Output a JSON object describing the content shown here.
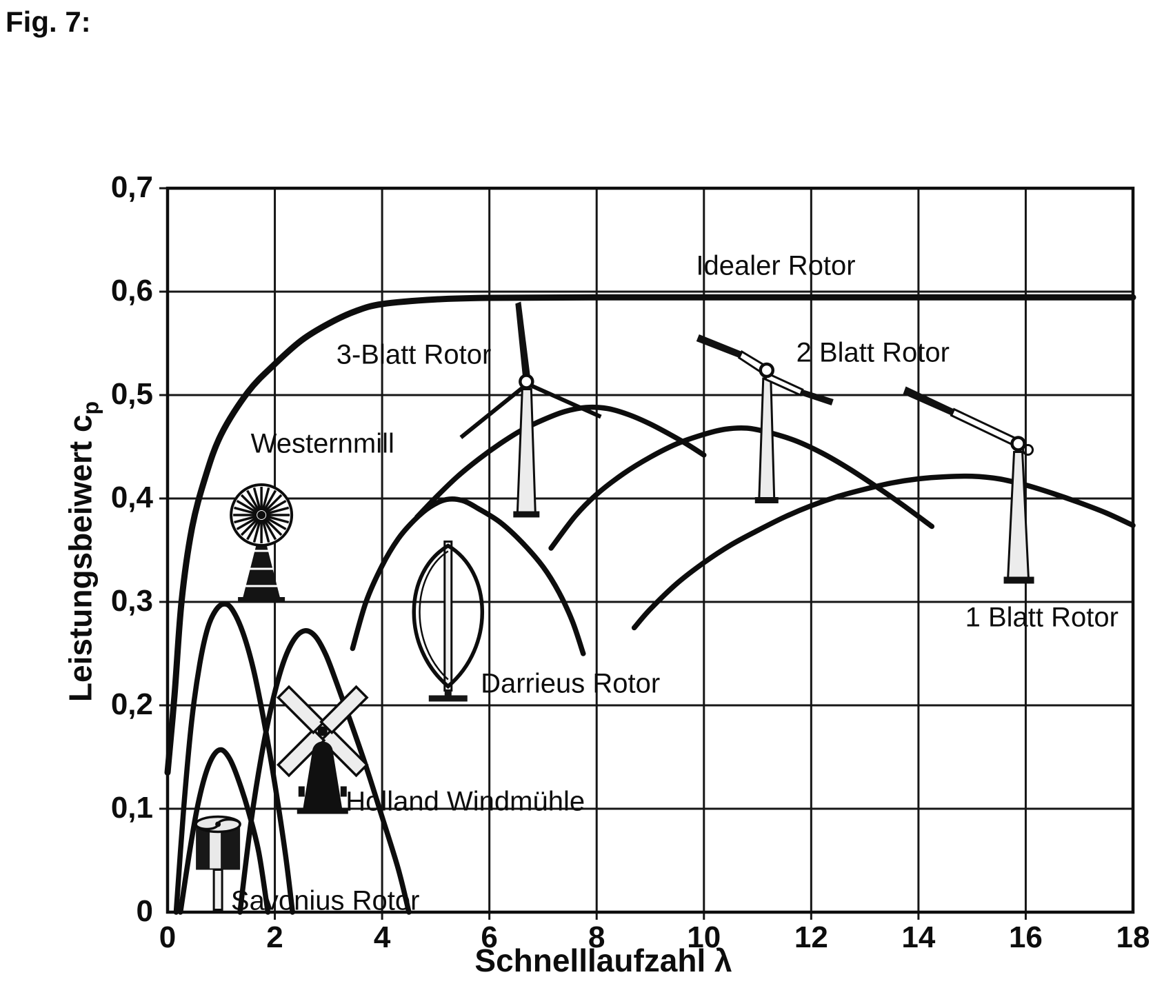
{
  "figure": {
    "label": "Fig. 7:"
  },
  "chart_data": {
    "type": "line",
    "title": "",
    "xlabel": "Schnelllaufzahl λ",
    "ylabel": "Leistungsbeiwert cp",
    "ylabel_main": "Leistungsbeiwert c",
    "ylabel_sub": "p",
    "xlim": [
      0,
      18
    ],
    "ylim": [
      0,
      0.7
    ],
    "x_ticks": [
      "0",
      "2",
      "4",
      "6",
      "8",
      "10",
      "12",
      "14",
      "16",
      "18"
    ],
    "y_ticks": [
      "0",
      "0,1",
      "0,2",
      "0,3",
      "0,4",
      "0,5",
      "0,6",
      "0,7"
    ],
    "grid": true,
    "legend_position": "labels-on-curves",
    "series": [
      {
        "name": "Idealer Rotor",
        "stroke_width": 9,
        "points": [
          [
            0,
            0.135
          ],
          [
            0.13,
            0.21
          ],
          [
            0.26,
            0.3
          ],
          [
            0.45,
            0.37
          ],
          [
            0.7,
            0.42
          ],
          [
            1,
            0.462
          ],
          [
            1.5,
            0.503
          ],
          [
            2,
            0.53
          ],
          [
            2.5,
            0.553
          ],
          [
            3,
            0.569
          ],
          [
            3.5,
            0.581
          ],
          [
            4,
            0.588
          ],
          [
            5,
            0.5925
          ],
          [
            6,
            0.594
          ],
          [
            8,
            0.5945
          ],
          [
            12,
            0.5945
          ],
          [
            18,
            0.5945
          ]
        ]
      },
      {
        "name": "Savonius Rotor",
        "stroke_width": 7.5,
        "points": [
          [
            0.24,
            0.0
          ],
          [
            0.4,
            0.055
          ],
          [
            0.55,
            0.1
          ],
          [
            0.7,
            0.132
          ],
          [
            0.85,
            0.151
          ],
          [
            1.0,
            0.157
          ],
          [
            1.15,
            0.149
          ],
          [
            1.3,
            0.131
          ],
          [
            1.5,
            0.099
          ],
          [
            1.7,
            0.058
          ],
          [
            1.87,
            0.0
          ]
        ]
      },
      {
        "name": "Westernmill",
        "stroke_width": 7.5,
        "points": [
          [
            0.16,
            0.0
          ],
          [
            0.3,
            0.1
          ],
          [
            0.45,
            0.185
          ],
          [
            0.6,
            0.24
          ],
          [
            0.75,
            0.275
          ],
          [
            0.9,
            0.292
          ],
          [
            1.05,
            0.298
          ],
          [
            1.2,
            0.293
          ],
          [
            1.4,
            0.271
          ],
          [
            1.6,
            0.235
          ],
          [
            1.8,
            0.184
          ],
          [
            2.0,
            0.124
          ],
          [
            2.2,
            0.055
          ],
          [
            2.33,
            0.0
          ]
        ]
      },
      {
        "name": "Holland Windmühle",
        "stroke_width": 7.5,
        "points": [
          [
            1.35,
            0.0
          ],
          [
            1.55,
            0.085
          ],
          [
            1.75,
            0.151
          ],
          [
            1.95,
            0.202
          ],
          [
            2.15,
            0.24
          ],
          [
            2.35,
            0.263
          ],
          [
            2.55,
            0.272
          ],
          [
            2.75,
            0.267
          ],
          [
            2.95,
            0.249
          ],
          [
            3.15,
            0.222
          ],
          [
            3.4,
            0.186
          ],
          [
            3.7,
            0.141
          ],
          [
            4.0,
            0.092
          ],
          [
            4.3,
            0.042
          ],
          [
            4.5,
            0.0
          ]
        ]
      },
      {
        "name": "Darrieus Rotor",
        "stroke_width": 7.5,
        "points": [
          [
            3.45,
            0.255
          ],
          [
            3.7,
            0.3
          ],
          [
            4.0,
            0.335
          ],
          [
            4.3,
            0.361
          ],
          [
            4.6,
            0.379
          ],
          [
            4.9,
            0.392
          ],
          [
            5.2,
            0.399
          ],
          [
            5.5,
            0.398
          ],
          [
            5.8,
            0.39
          ],
          [
            6.2,
            0.377
          ],
          [
            6.6,
            0.358
          ],
          [
            7.0,
            0.334
          ],
          [
            7.3,
            0.309
          ],
          [
            7.55,
            0.281
          ],
          [
            7.75,
            0.25
          ]
        ]
      },
      {
        "name": "3-Blatt Rotor",
        "stroke_width": 7.5,
        "points": [
          [
            4.65,
            0.382
          ],
          [
            5.0,
            0.401
          ],
          [
            5.4,
            0.421
          ],
          [
            5.8,
            0.438
          ],
          [
            6.2,
            0.453
          ],
          [
            6.6,
            0.466
          ],
          [
            7.0,
            0.476
          ],
          [
            7.4,
            0.484
          ],
          [
            7.8,
            0.488
          ],
          [
            8.2,
            0.487
          ],
          [
            8.6,
            0.481
          ],
          [
            9.0,
            0.472
          ],
          [
            9.4,
            0.461
          ],
          [
            9.7,
            0.452
          ],
          [
            10.0,
            0.442
          ]
        ]
      },
      {
        "name": "2 Blatt Rotor",
        "stroke_width": 7.5,
        "points": [
          [
            7.15,
            0.352
          ],
          [
            7.6,
            0.383
          ],
          [
            8.0,
            0.404
          ],
          [
            8.5,
            0.424
          ],
          [
            9.0,
            0.44
          ],
          [
            9.5,
            0.453
          ],
          [
            10.0,
            0.462
          ],
          [
            10.4,
            0.467
          ],
          [
            10.8,
            0.468
          ],
          [
            11.2,
            0.464
          ],
          [
            11.7,
            0.456
          ],
          [
            12.2,
            0.444
          ],
          [
            12.7,
            0.429
          ],
          [
            13.2,
            0.412
          ],
          [
            13.7,
            0.394
          ],
          [
            14.25,
            0.373
          ]
        ]
      },
      {
        "name": "1 Blatt Rotor",
        "stroke_width": 7.5,
        "points": [
          [
            8.7,
            0.275
          ],
          [
            9.0,
            0.293
          ],
          [
            9.5,
            0.318
          ],
          [
            10.0,
            0.338
          ],
          [
            10.5,
            0.355
          ],
          [
            11.0,
            0.369
          ],
          [
            11.5,
            0.382
          ],
          [
            12.0,
            0.393
          ],
          [
            12.5,
            0.402
          ],
          [
            13.0,
            0.409
          ],
          [
            13.5,
            0.415
          ],
          [
            14.0,
            0.419
          ],
          [
            14.5,
            0.421
          ],
          [
            15.0,
            0.4215
          ],
          [
            15.5,
            0.419
          ],
          [
            16.0,
            0.413
          ],
          [
            16.5,
            0.405
          ],
          [
            17.0,
            0.396
          ],
          [
            17.5,
            0.386
          ],
          [
            18.0,
            0.374
          ]
        ]
      }
    ],
    "annotations": [
      {
        "text": "Idealer Rotor",
        "x": 11.34,
        "y": 0.625
      },
      {
        "text": "3-Blatt Rotor",
        "x": 4.59,
        "y": 0.539
      },
      {
        "text": "Westernmill",
        "x": 2.89,
        "y": 0.453
      },
      {
        "text": "2 Blatt Rotor",
        "x": 13.15,
        "y": 0.541
      },
      {
        "text": "1 Blatt Rotor",
        "x": 16.3,
        "y": 0.285
      },
      {
        "text": "Darrieus Rotor",
        "x": 7.51,
        "y": 0.221
      },
      {
        "text": "Holland Windmühle",
        "x": 5.55,
        "y": 0.107
      },
      {
        "text": "Savonius Rotor",
        "x": 2.94,
        "y": 0.011
      }
    ],
    "icons": [
      {
        "name": "savonius-rotor-icon",
        "x": 0.94,
        "y": 0.063
      },
      {
        "name": "westernmill-icon",
        "x": 1.75,
        "y": 0.384
      },
      {
        "name": "holland-windmill-icon",
        "x": 2.89,
        "y": 0.175
      },
      {
        "name": "darrieus-rotor-icon",
        "x": 5.23,
        "y": 0.285
      },
      {
        "name": "three-blade-rotor-icon",
        "x": 6.69,
        "y": 0.513
      },
      {
        "name": "two-blade-rotor-icon",
        "x": 11.17,
        "y": 0.524
      },
      {
        "name": "one-blade-rotor-icon",
        "x": 15.86,
        "y": 0.453
      }
    ],
    "ink_color": "#0d0d0d"
  }
}
